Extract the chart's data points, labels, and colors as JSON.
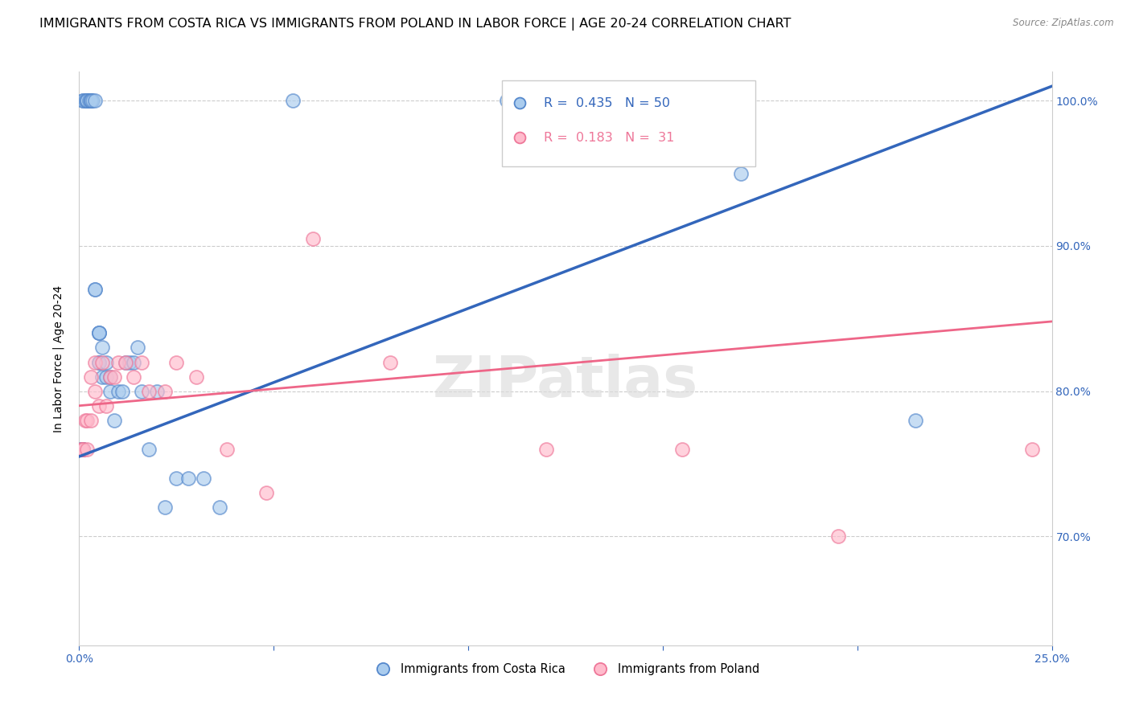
{
  "title": "IMMIGRANTS FROM COSTA RICA VS IMMIGRANTS FROM POLAND IN LABOR FORCE | AGE 20-24 CORRELATION CHART",
  "source": "Source: ZipAtlas.com",
  "ylabel": "In Labor Force | Age 20-24",
  "xlim": [
    0.0,
    0.25
  ],
  "ylim": [
    0.625,
    1.02
  ],
  "xticks": [
    0.0,
    0.05,
    0.1,
    0.15,
    0.2,
    0.25
  ],
  "yticks": [
    0.7,
    0.8,
    0.9,
    1.0
  ],
  "blue_R": 0.435,
  "blue_N": 50,
  "pink_R": 0.183,
  "pink_N": 31,
  "blue_fill": "#AACCEE",
  "pink_fill": "#FFBBCC",
  "blue_edge": "#5588CC",
  "pink_edge": "#EE7799",
  "blue_line_color": "#3366BB",
  "pink_line_color": "#EE6688",
  "watermark": "ZIPatlas",
  "legend_label_blue": "Immigrants from Costa Rica",
  "legend_label_pink": "Immigrants from Poland",
  "blue_x": [
    0.0005,
    0.0005,
    0.0008,
    0.001,
    0.001,
    0.001,
    0.001,
    0.001,
    0.0015,
    0.002,
    0.002,
    0.002,
    0.0025,
    0.003,
    0.003,
    0.003,
    0.0035,
    0.004,
    0.004,
    0.004,
    0.005,
    0.005,
    0.005,
    0.005,
    0.005,
    0.006,
    0.006,
    0.007,
    0.007,
    0.008,
    0.008,
    0.009,
    0.01,
    0.011,
    0.012,
    0.013,
    0.014,
    0.015,
    0.016,
    0.018,
    0.02,
    0.022,
    0.025,
    0.028,
    0.032,
    0.036,
    0.055,
    0.11,
    0.17,
    0.215
  ],
  "blue_y": [
    0.76,
    0.76,
    0.76,
    0.76,
    0.76,
    0.76,
    1.0,
    1.0,
    1.0,
    1.0,
    1.0,
    1.0,
    1.0,
    1.0,
    1.0,
    1.0,
    1.0,
    1.0,
    0.87,
    0.87,
    0.84,
    0.84,
    0.84,
    0.82,
    0.82,
    0.83,
    0.81,
    0.82,
    0.81,
    0.81,
    0.8,
    0.78,
    0.8,
    0.8,
    0.82,
    0.82,
    0.82,
    0.83,
    0.8,
    0.76,
    0.8,
    0.72,
    0.74,
    0.74,
    0.74,
    0.72,
    1.0,
    1.0,
    0.95,
    0.78
  ],
  "pink_x": [
    0.0005,
    0.001,
    0.001,
    0.0015,
    0.002,
    0.002,
    0.003,
    0.003,
    0.004,
    0.004,
    0.005,
    0.006,
    0.007,
    0.008,
    0.009,
    0.01,
    0.012,
    0.014,
    0.016,
    0.018,
    0.022,
    0.025,
    0.03,
    0.038,
    0.048,
    0.06,
    0.08,
    0.12,
    0.155,
    0.195,
    0.245
  ],
  "pink_y": [
    0.76,
    0.76,
    0.76,
    0.78,
    0.76,
    0.78,
    0.78,
    0.81,
    0.8,
    0.82,
    0.79,
    0.82,
    0.79,
    0.81,
    0.81,
    0.82,
    0.82,
    0.81,
    0.82,
    0.8,
    0.8,
    0.82,
    0.81,
    0.76,
    0.73,
    0.905,
    0.82,
    0.76,
    0.76,
    0.7,
    0.76
  ],
  "blue_line_x": [
    0.0,
    0.25
  ],
  "blue_line_y": [
    0.755,
    1.01
  ],
  "pink_line_x": [
    0.0,
    0.25
  ],
  "pink_line_y": [
    0.79,
    0.848
  ],
  "title_fontsize": 11.5,
  "axis_label_fontsize": 10,
  "tick_fontsize": 10
}
